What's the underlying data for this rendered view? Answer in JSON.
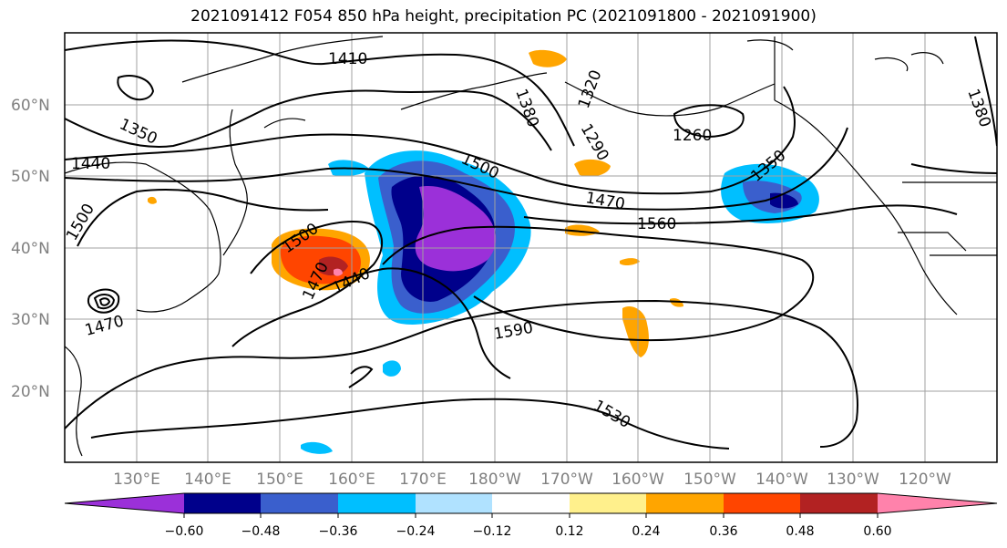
{
  "title": "2021091412 F054 850 hPa height, precipitation PC (2021091800 - 2021091900)",
  "lat_ticks": [
    "60°N",
    "50°N",
    "40°N",
    "30°N",
    "20°N"
  ],
  "lon_ticks": [
    "130°E",
    "140°E",
    "150°E",
    "160°E",
    "170°E",
    "180°W",
    "170°W",
    "160°W",
    "150°W",
    "140°W",
    "130°W",
    "120°W"
  ],
  "contour_labels": [
    "1410",
    "1350",
    "1440",
    "1500",
    "1380",
    "1320",
    "1290",
    "1260",
    "1350",
    "1380",
    "1500",
    "1470",
    "1560",
    "1500",
    "1470",
    "1440",
    "1470",
    "1590",
    "1530"
  ],
  "colorbar": {
    "colors": [
      "#9b30d9",
      "#00008b",
      "#3a5fcd",
      "#00bfff",
      "#b0e2ff",
      "#ffffff",
      "#fff08c",
      "#ffa500",
      "#ff4500",
      "#b22222",
      "#ff82ab"
    ],
    "tick_labels": [
      "−0.60",
      "−0.48",
      "−0.36",
      "−0.24",
      "−0.12",
      "0.12",
      "0.24",
      "0.36",
      "0.48",
      "0.60"
    ]
  }
}
